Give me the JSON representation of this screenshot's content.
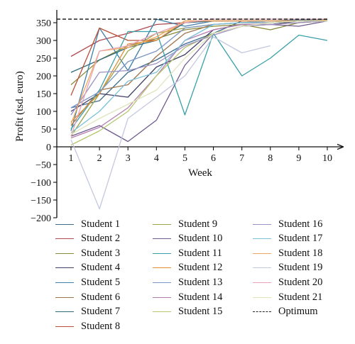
{
  "chart_data": {
    "type": "line",
    "title": "",
    "xlabel": "Week",
    "ylabel": "Profit (tsd. euro)",
    "xlim": [
      1,
      10
    ],
    "ylim": [
      -200,
      360
    ],
    "x_ticks": [
      "1",
      "2",
      "3",
      "4",
      "5",
      "6",
      "7",
      "8",
      "9",
      "10"
    ],
    "y_ticks": [
      "350",
      "300",
      "250",
      "200",
      "150",
      "100",
      "50",
      "0",
      "−50",
      "−100",
      "−150",
      "−200"
    ],
    "grid": false,
    "legend_position": "bottom",
    "optimum": {
      "name": "Optimum",
      "value": 360,
      "color": "#222222"
    },
    "series": [
      {
        "name": "Student 1",
        "color": "#3d6c8c",
        "values": [
          110,
          130,
          210,
          245,
          290,
          320,
          355,
          355,
          358,
          358
        ]
      },
      {
        "name": "Student 2",
        "color": "#b04a50",
        "values": [
          255,
          300,
          320,
          345,
          350,
          355,
          355,
          355,
          355,
          356
        ]
      },
      {
        "name": "Student 3",
        "color": "#8a8a3c",
        "values": [
          175,
          245,
          285,
          305,
          330,
          340,
          345,
          330,
          350,
          355
        ]
      },
      {
        "name": "Student 4",
        "color": "#3f3f66",
        "values": [
          100,
          150,
          140,
          225,
          260,
          330,
          345,
          345,
          355,
          355
        ]
      },
      {
        "name": "Student 5",
        "color": "#3f7fa8",
        "values": [
          45,
          335,
          215,
          360,
          340,
          355,
          355,
          355,
          355,
          357
        ]
      },
      {
        "name": "Student 6",
        "color": "#a0764c",
        "values": [
          60,
          160,
          175,
          255,
          320,
          345,
          350,
          355,
          355,
          355
        ]
      },
      {
        "name": "Student 7",
        "color": "#2f6a7a",
        "values": [
          210,
          245,
          280,
          300,
          350,
          355,
          355,
          355,
          355,
          355
        ]
      },
      {
        "name": "Student 8",
        "color": "#b85038",
        "values": [
          145,
          335,
          300,
          300,
          355,
          355,
          355,
          355,
          355,
          355
        ]
      },
      {
        "name": "Student 9",
        "color": "#9aa44a",
        "values": [
          30,
          150,
          270,
          320,
          335,
          345,
          350,
          350,
          355,
          355
        ]
      },
      {
        "name": "Student 10",
        "color": "#6e5a8e",
        "values": [
          30,
          60,
          15,
          75,
          230,
          320,
          340,
          345,
          340,
          355
        ]
      },
      {
        "name": "Student 11",
        "color": "#3aa0a8",
        "values": [
          50,
          160,
          325,
          325,
          90,
          320,
          200,
          250,
          315,
          300
        ]
      },
      {
        "name": "Student 12",
        "color": "#e0923a",
        "values": [
          70,
          150,
          290,
          300,
          355,
          355,
          355,
          355,
          355,
          357
        ]
      },
      {
        "name": "Student 13",
        "color": "#7c96c4",
        "values": [
          110,
          155,
          240,
          270,
          335,
          345,
          350,
          350,
          355,
          355
        ]
      },
      {
        "name": "Student 14",
        "color": "#b57cae",
        "values": [
          25,
          55,
          110,
          200,
          300,
          330,
          345,
          345,
          350,
          355
        ]
      },
      {
        "name": "Student 15",
        "color": "#b6c46e",
        "values": [
          5,
          45,
          100,
          200,
          280,
          320,
          340,
          345,
          350,
          355
        ]
      },
      {
        "name": "Student 16",
        "color": "#9c90c4",
        "values": [
          90,
          210,
          215,
          235,
          285,
          315,
          340,
          345,
          350,
          355
        ]
      },
      {
        "name": "Student 17",
        "color": "#7cc0d8",
        "values": [
          40,
          100,
          185,
          210,
          300,
          345,
          350,
          355,
          355,
          355
        ]
      },
      {
        "name": "Student 18",
        "color": "#f0a860",
        "values": [
          65,
          270,
          280,
          310,
          355,
          355,
          355,
          355,
          355,
          355
        ]
      },
      {
        "name": "Student 19",
        "color": "#c4c8e0",
        "values": [
          20,
          -175,
          80,
          140,
          200,
          310,
          265,
          285,
          null,
          null
        ]
      },
      {
        "name": "Student 20",
        "color": "#e8a4b4",
        "values": [
          30,
          270,
          285,
          320,
          350,
          360,
          360,
          360,
          360,
          360
        ]
      },
      {
        "name": "Student 21",
        "color": "#e0e4bc",
        "values": [
          35,
          80,
          120,
          160,
          250,
          320,
          340,
          350,
          355,
          355
        ]
      }
    ]
  }
}
